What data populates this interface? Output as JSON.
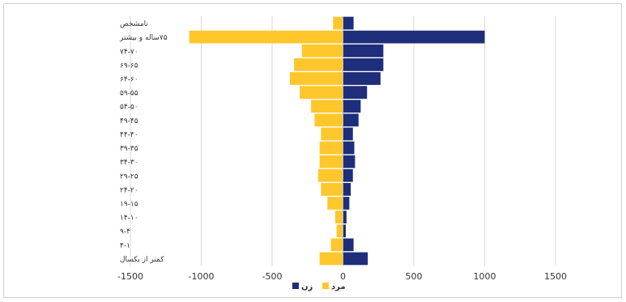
{
  "chart_data": {
    "type": "bar",
    "orientation": "horizontal",
    "layout": "population-pyramid (diverging stacked bars)",
    "categories": [
      "نامشخص",
      "۷۵ساله و بیشتر",
      "۷۴-۷۰",
      "۶۹-۶۵",
      "۶۴-۶۰",
      "۵۹-۵۵",
      "۵۴-۵۰",
      "۴۹-۴۵",
      "۴۴-۴۰",
      "۳۹-۳۵",
      "۳۴-۳۰",
      "۲۹-۲۵",
      "۲۴-۲۰",
      "۱۹-۱۵",
      "۱۴-۱۰",
      "۹-۴",
      "۴-۱",
      "کمتر از یکسال"
    ],
    "series": [
      {
        "name": "زن",
        "color": "#1f2e7a",
        "values": [
          75,
          1000,
          285,
          285,
          265,
          170,
          125,
          110,
          70,
          80,
          85,
          70,
          55,
          45,
          25,
          20,
          75,
          175
        ]
      },
      {
        "name": "مرد",
        "color": "#ffc72c",
        "values": [
          -70,
          -1085,
          -290,
          -345,
          -375,
          -305,
          -225,
          -200,
          -155,
          -165,
          -165,
          -175,
          -155,
          -110,
          -55,
          -45,
          -85,
          -165
        ]
      }
    ],
    "xlim": [
      -1500,
      1500
    ],
    "xticks": [
      -1500,
      -1000,
      -500,
      0,
      500,
      1000,
      1500
    ],
    "xtick_labels": [
      "-1500",
      "-1000",
      "-500",
      "0",
      "500",
      "1000",
      "1500"
    ],
    "grid": "vertical gridlines on",
    "legend_position": "bottom-center",
    "title": "",
    "xlabel": "",
    "ylabel": ""
  },
  "colors": {
    "grid": "#d9d9d9",
    "axis": "#bfbfbf",
    "text": "#333333",
    "frame": "#cfcfcf"
  }
}
